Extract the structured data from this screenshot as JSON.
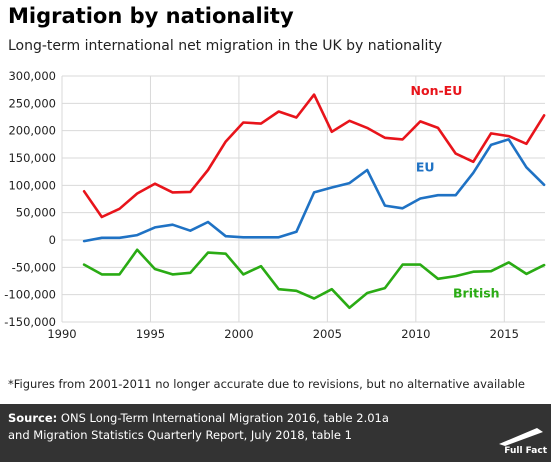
{
  "title": "Migration by nationality",
  "subtitle": "Long-term international net migration in the UK by nationality",
  "footnote": "*Figures from 2001-2011 no longer accurate due to revisions, but no alternative available",
  "source": {
    "label": "Source:",
    "line1": " ONS Long-Term International Migration 2016, table 2.01a",
    "line2": "and Migration Statistics Quarterly Report, July 2018, table 1"
  },
  "logo_text": "Full Fact",
  "chart_data": {
    "type": "line",
    "title": "",
    "xlabel": "",
    "ylabel": "",
    "xlim": [
      1990,
      2017.3
    ],
    "ylim": [
      -150000,
      300000
    ],
    "x_ticks": [
      1990,
      1995,
      2000,
      2005,
      2010,
      2015
    ],
    "x_tick_labels": [
      "1990",
      "1995",
      "2000",
      "2005",
      "2010",
      "2015"
    ],
    "y_ticks": [
      300000,
      250000,
      200000,
      150000,
      100000,
      50000,
      0,
      -50000,
      -100000,
      -150000
    ],
    "y_tick_labels": [
      "300,000",
      "250,000",
      "200,000",
      "150,000",
      "100,000",
      "50,000",
      "0",
      "-50,000",
      "-100,000",
      "-150,000"
    ],
    "grid": true,
    "series": [
      {
        "name": "Non-EU",
        "color": "#e8141b",
        "x": [
          1991.25,
          1992.25,
          1993.25,
          1994.25,
          1995.25,
          1996.25,
          1997.25,
          1998.25,
          1999.25,
          2000.25,
          2001.25,
          2002.25,
          2003.25,
          2004.25,
          2005.25,
          2006.25,
          2007.25,
          2008.25,
          2009.25,
          2010.25,
          2011.25,
          2012.25,
          2013.25,
          2014.25,
          2015.25,
          2016.25,
          2017.25
        ],
        "values": [
          89000,
          42000,
          57000,
          85000,
          103000,
          87000,
          88000,
          128000,
          180000,
          215000,
          213000,
          235000,
          224000,
          266000,
          198000,
          218000,
          205000,
          187000,
          184000,
          217000,
          205000,
          158000,
          143000,
          195000,
          190000,
          176000,
          228000
        ]
      },
      {
        "name": "EU",
        "color": "#1f72c4",
        "x": [
          1991.25,
          1992.25,
          1993.25,
          1994.25,
          1995.25,
          1996.25,
          1997.25,
          1998.25,
          1999.25,
          2000.25,
          2001.25,
          2002.25,
          2003.25,
          2004.25,
          2005.25,
          2006.25,
          2007.25,
          2008.25,
          2009.25,
          2010.25,
          2011.25,
          2012.25,
          2013.25,
          2014.25,
          2015.25,
          2016.25,
          2017.25
        ],
        "values": [
          -2000,
          4000,
          4000,
          9000,
          23000,
          28000,
          17000,
          33000,
          7000,
          5000,
          5000,
          5000,
          15000,
          87000,
          96000,
          104000,
          128000,
          63000,
          58000,
          76000,
          82000,
          82000,
          123000,
          174000,
          184000,
          133000,
          101000
        ]
      },
      {
        "name": "British",
        "color": "#2aab14",
        "x": [
          1991.25,
          1992.25,
          1993.25,
          1994.25,
          1995.25,
          1996.25,
          1997.25,
          1998.25,
          1999.25,
          2000.25,
          2001.25,
          2002.25,
          2003.25,
          2004.25,
          2005.25,
          2006.25,
          2007.25,
          2008.25,
          2009.25,
          2010.25,
          2011.25,
          2012.25,
          2013.25,
          2014.25,
          2015.25,
          2016.25,
          2017.25
        ],
        "values": [
          -45000,
          -63000,
          -63000,
          -18000,
          -53000,
          -63000,
          -60000,
          -23000,
          -25000,
          -63000,
          -48000,
          -90000,
          -93000,
          -107000,
          -90000,
          -124000,
          -97000,
          -88000,
          -45000,
          -45000,
          -71000,
          -66000,
          -58000,
          -57000,
          -41000,
          -62000,
          -46000
        ]
      }
    ],
    "annotations": [
      {
        "text": "Non-EU",
        "color": "#e8141b",
        "x": 2009.7,
        "y": 265000
      },
      {
        "text": "EU",
        "color": "#1f72c4",
        "x": 2010.0,
        "y": 125000
      },
      {
        "text": "British",
        "color": "#2aab14",
        "x": 2012.1,
        "y": -105000
      }
    ]
  }
}
